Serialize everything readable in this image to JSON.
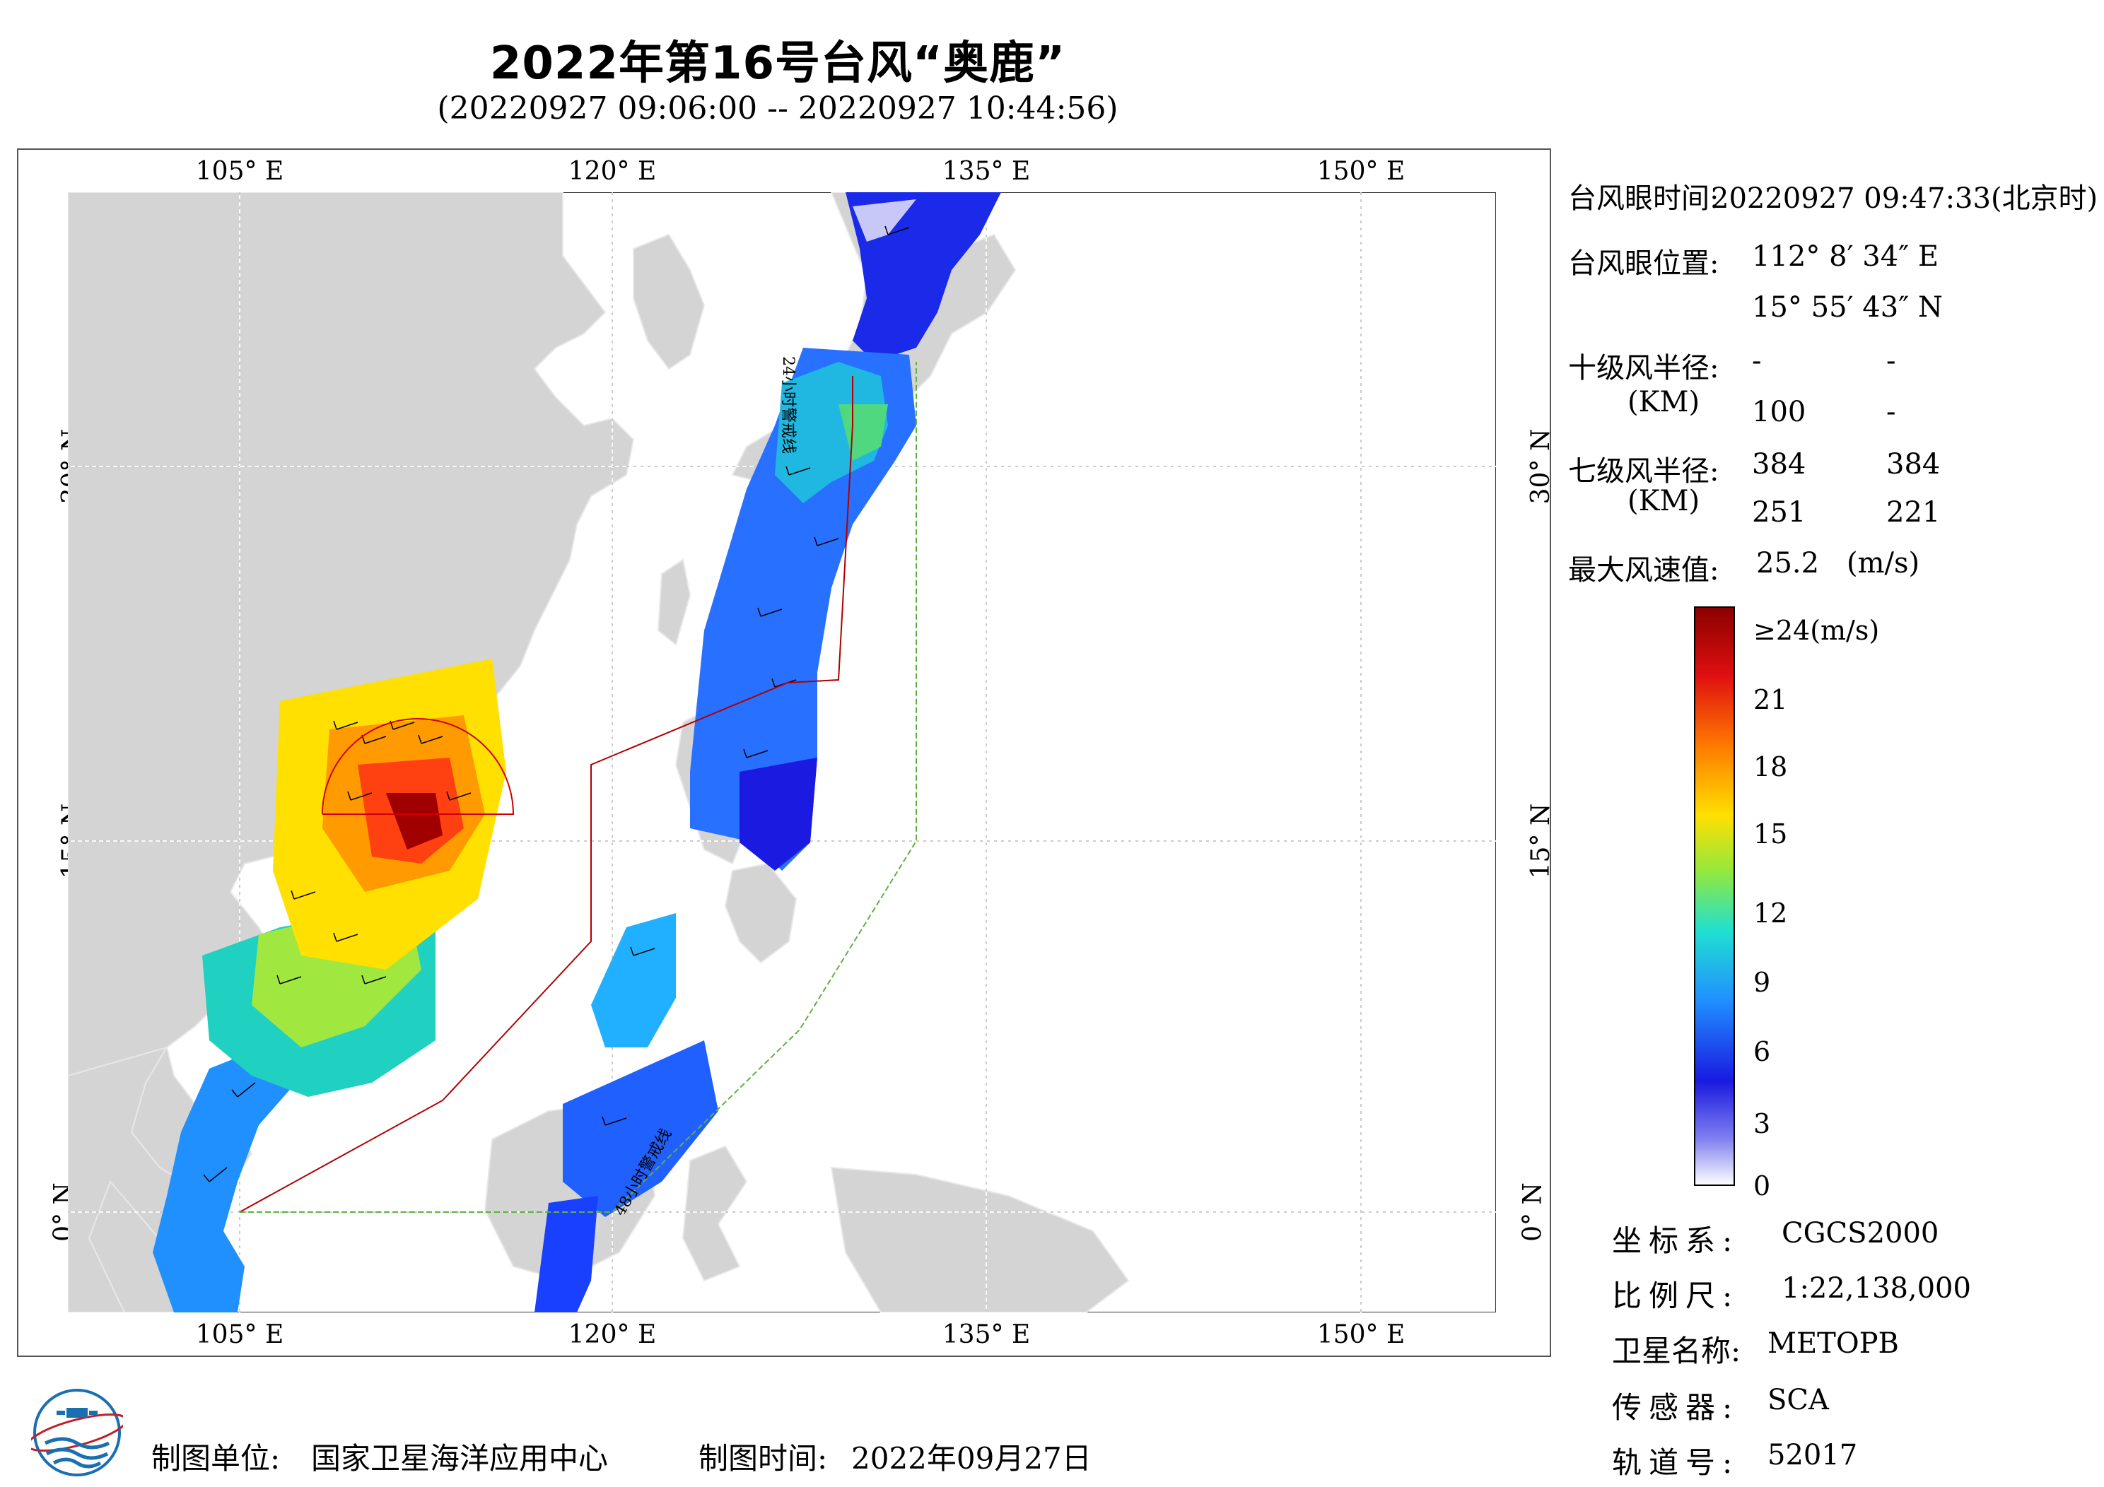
{
  "title": "2022年第16号台风“奥鹿”",
  "subtitle": "(20220927 09:06:00 -- 20220927 10:44:56)",
  "axes": {
    "lon_ticks": [
      "105° E",
      "120° E",
      "135° E",
      "150° E"
    ],
    "lat_ticks": [
      "30° N",
      "15° N",
      "0° N"
    ]
  },
  "map_labels": {
    "warning_24h": "24小时警戒线",
    "warning_48h": "48小时警戒线"
  },
  "info": {
    "eye_time_label": "台风眼时间:",
    "eye_time_value": "20220927 09:47:33(北京时)",
    "eye_pos_label": "台风眼位置:",
    "eye_lon": "112° 8′ 34″ E",
    "eye_lat": "15° 55′ 43″ N",
    "r10_label": "十级风半径:",
    "r10_unit": "(KM)",
    "r10_values": [
      "-",
      "-",
      "100",
      "-"
    ],
    "r7_label": "七级风半径:",
    "r7_unit": "(KM)",
    "r7_values": [
      "384",
      "384",
      "251",
      "221"
    ],
    "max_wind_label": "最大风速值:",
    "max_wind_value": "25.2",
    "max_wind_unit": "(m/s)"
  },
  "colorbar": {
    "labels": [
      "≥24(m/s)",
      "21",
      "18",
      "15",
      "12",
      "9",
      "6",
      "3",
      "0"
    ],
    "colors": [
      "#a00000",
      "#e02010",
      "#ff6a00",
      "#ffb000",
      "#ffe000",
      "#c8f000",
      "#60e060",
      "#20d8c8",
      "#20a8ff",
      "#2060ff",
      "#1a1ae0",
      "#6060e8",
      "#c8c8f8",
      "#ffffff"
    ]
  },
  "meta": {
    "crs_label": "坐标系:",
    "crs_value": "CGCS2000",
    "scale_label": "比例尺:",
    "scale_value": "1:22,138,000",
    "sat_label": "卫星名称:",
    "sat_value": "METOPB",
    "sensor_label": "传感器:",
    "sensor_value": "SCA",
    "orbit_label": "轨道号:",
    "orbit_value": "52017"
  },
  "footer": {
    "org_label": "制图单位:",
    "org_value": "国家卫星海洋应用中心",
    "date_label": "制图时间:",
    "date_value": "2022年09月27日"
  }
}
